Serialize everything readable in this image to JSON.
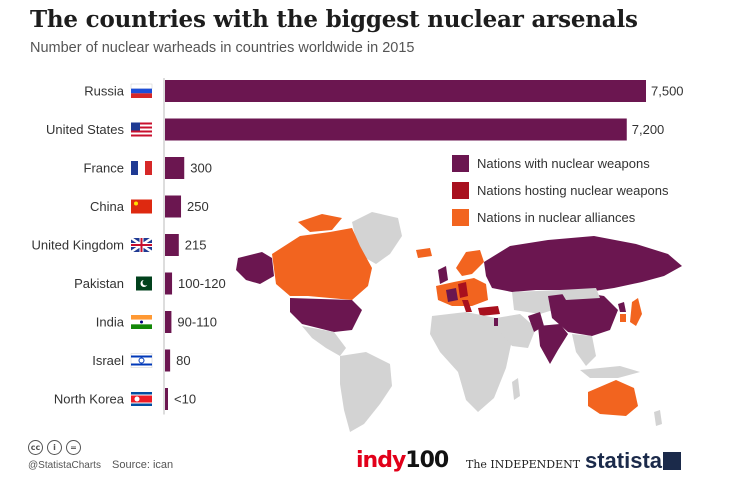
{
  "header": {
    "title": "The countries with the biggest nuclear arsenals",
    "subtitle": "Number of nuclear warheads in countries worldwide in 2015"
  },
  "legend": [
    {
      "label": "Nations with nuclear weapons",
      "color": "#6b1650"
    },
    {
      "label": "Nations hosting nuclear weapons",
      "color": "#a8101e"
    },
    {
      "label": "Nations in nuclear alliances",
      "color": "#f2641f"
    }
  ],
  "chart_data": {
    "type": "bar",
    "orientation": "horizontal",
    "title": "The countries with the biggest nuclear arsenals",
    "subtitle": "Number of nuclear warheads in countries worldwide in 2015",
    "categories": [
      "Russia",
      "United States",
      "France",
      "China",
      "United Kingdom",
      "Pakistan",
      "India",
      "Israel",
      "North Korea"
    ],
    "values": [
      7500,
      7200,
      300,
      250,
      215,
      110,
      100,
      80,
      5
    ],
    "data_labels": [
      "7,500",
      "7,200",
      "300",
      "250",
      "215",
      "100-120",
      "90-110",
      "80",
      "<10"
    ],
    "bar_color": "#6b1650",
    "grid": false,
    "xlim": [
      0,
      7500
    ]
  },
  "footer": {
    "handle": "@StatistaCharts",
    "source": "Source: ican",
    "logo_indy": "indy",
    "logo_indy_num": "100",
    "logo_independent": "The INDEPENDENT",
    "logo_statista": "statista"
  }
}
